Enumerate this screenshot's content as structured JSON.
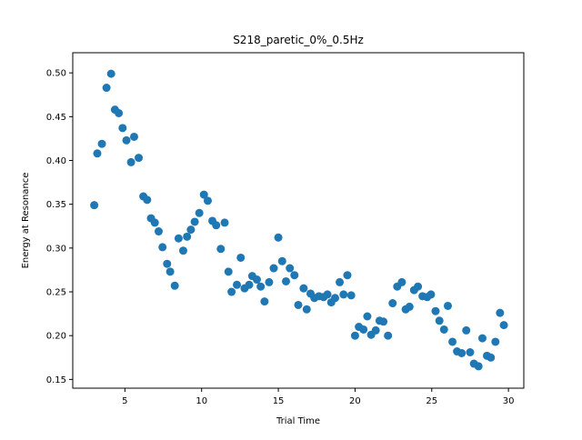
{
  "chart_data": {
    "type": "scatter",
    "title": "S218_paretic_0%_0.5Hz",
    "xlabel": "Trial Time",
    "ylabel": "Energy at Resonance",
    "xlim": [
      1.6,
      31.0
    ],
    "ylim": [
      0.14,
      0.523
    ],
    "xticks": [
      5,
      10,
      15,
      20,
      25,
      30
    ],
    "yticks": [
      0.15,
      0.2,
      0.25,
      0.3,
      0.35,
      0.4,
      0.45,
      0.5
    ],
    "xtick_labels": [
      "5",
      "10",
      "15",
      "20",
      "25",
      "30"
    ],
    "ytick_labels": [
      "0.15",
      "0.20",
      "0.25",
      "0.30",
      "0.35",
      "0.40",
      "0.45",
      "0.50"
    ],
    "grid": false,
    "color": "#1f77b4",
    "series": [
      {
        "points": [
          [
            3.0,
            0.349
          ],
          [
            3.2,
            0.408
          ],
          [
            3.5,
            0.419
          ],
          [
            3.8,
            0.483
          ],
          [
            4.1,
            0.499
          ],
          [
            4.35,
            0.458
          ],
          [
            4.6,
            0.454
          ],
          [
            4.85,
            0.437
          ],
          [
            5.1,
            0.423
          ],
          [
            5.4,
            0.398
          ],
          [
            5.6,
            0.427
          ],
          [
            5.9,
            0.403
          ],
          [
            6.2,
            0.359
          ],
          [
            6.45,
            0.355
          ],
          [
            6.7,
            0.334
          ],
          [
            6.95,
            0.329
          ],
          [
            7.2,
            0.319
          ],
          [
            7.45,
            0.301
          ],
          [
            7.75,
            0.282
          ],
          [
            7.95,
            0.273
          ],
          [
            8.25,
            0.257
          ],
          [
            8.5,
            0.311
          ],
          [
            8.8,
            0.297
          ],
          [
            9.05,
            0.313
          ],
          [
            9.3,
            0.321
          ],
          [
            9.55,
            0.33
          ],
          [
            9.85,
            0.34
          ],
          [
            10.15,
            0.361
          ],
          [
            10.4,
            0.354
          ],
          [
            10.7,
            0.331
          ],
          [
            10.95,
            0.326
          ],
          [
            11.25,
            0.299
          ],
          [
            11.5,
            0.329
          ],
          [
            11.75,
            0.273
          ],
          [
            11.95,
            0.25
          ],
          [
            12.3,
            0.258
          ],
          [
            12.55,
            0.289
          ],
          [
            12.8,
            0.254
          ],
          [
            13.1,
            0.258
          ],
          [
            13.3,
            0.268
          ],
          [
            13.6,
            0.264
          ],
          [
            13.85,
            0.256
          ],
          [
            14.1,
            0.239
          ],
          [
            14.4,
            0.261
          ],
          [
            14.7,
            0.277
          ],
          [
            15.0,
            0.312
          ],
          [
            15.25,
            0.285
          ],
          [
            15.5,
            0.262
          ],
          [
            15.75,
            0.277
          ],
          [
            16.05,
            0.269
          ],
          [
            16.3,
            0.235
          ],
          [
            16.65,
            0.254
          ],
          [
            16.85,
            0.23
          ],
          [
            17.1,
            0.248
          ],
          [
            17.35,
            0.243
          ],
          [
            17.65,
            0.245
          ],
          [
            17.95,
            0.244
          ],
          [
            18.2,
            0.247
          ],
          [
            18.45,
            0.238
          ],
          [
            18.7,
            0.243
          ],
          [
            19.0,
            0.261
          ],
          [
            19.25,
            0.247
          ],
          [
            19.5,
            0.269
          ],
          [
            19.75,
            0.246
          ],
          [
            20.0,
            0.2
          ],
          [
            20.25,
            0.21
          ],
          [
            20.55,
            0.207
          ],
          [
            20.8,
            0.222
          ],
          [
            21.05,
            0.201
          ],
          [
            21.35,
            0.206
          ],
          [
            21.6,
            0.217
          ],
          [
            21.85,
            0.216
          ],
          [
            22.15,
            0.2
          ],
          [
            22.45,
            0.237
          ],
          [
            22.75,
            0.256
          ],
          [
            23.05,
            0.261
          ],
          [
            23.3,
            0.23
          ],
          [
            23.55,
            0.233
          ],
          [
            23.85,
            0.252
          ],
          [
            24.1,
            0.256
          ],
          [
            24.4,
            0.245
          ],
          [
            24.7,
            0.244
          ],
          [
            24.95,
            0.247
          ],
          [
            25.25,
            0.228
          ],
          [
            25.5,
            0.217
          ],
          [
            25.8,
            0.207
          ],
          [
            26.05,
            0.234
          ],
          [
            26.35,
            0.193
          ],
          [
            26.65,
            0.182
          ],
          [
            26.95,
            0.18
          ],
          [
            27.25,
            0.206
          ],
          [
            27.5,
            0.181
          ],
          [
            27.75,
            0.168
          ],
          [
            28.05,
            0.165
          ],
          [
            28.3,
            0.197
          ],
          [
            28.6,
            0.177
          ],
          [
            28.85,
            0.175
          ],
          [
            29.15,
            0.193
          ],
          [
            29.45,
            0.226
          ],
          [
            29.7,
            0.212
          ]
        ]
      }
    ]
  }
}
